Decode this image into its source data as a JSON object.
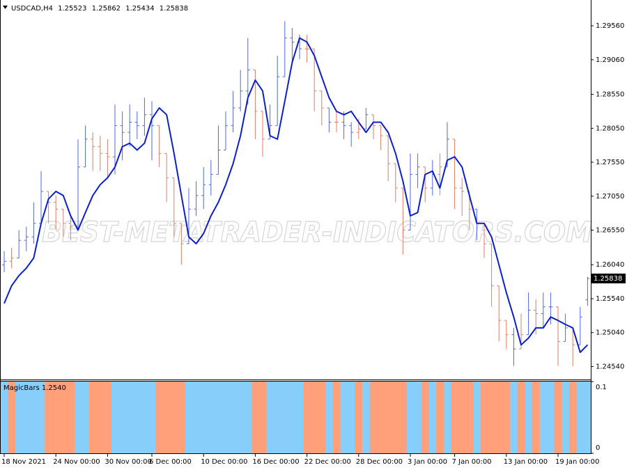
{
  "chart_data": [
    {
      "type": "ohlc",
      "title": "USDCAD,H4",
      "watermark": "BEST-METATRADER-INDICATORS.COM",
      "categories": [
        "18 Nov 2021",
        null,
        null,
        null,
        null,
        null,
        null,
        "24 Nov 00:00",
        null,
        null,
        null,
        null,
        null,
        null,
        "30 Nov 00:00",
        null,
        null,
        null,
        null,
        null,
        "6 Dec 00:00",
        null,
        null,
        null,
        null,
        null,
        null,
        "10 Dec 00:00",
        null,
        null,
        null,
        null,
        null,
        null,
        "16 Dec 00:00",
        null,
        null,
        null,
        null,
        null,
        null,
        "22 Dec 00:00",
        null,
        null,
        null,
        null,
        null,
        null,
        "28 Dec 00:00",
        null,
        null,
        null,
        null,
        null,
        null,
        "3 Jan 00:00",
        null,
        null,
        null,
        null,
        null,
        "7 Jan 00:00",
        null,
        null,
        null,
        null,
        null,
        null,
        "13 Jan 00:00",
        null,
        null,
        null,
        null,
        null,
        null,
        "19 Jan 00:00",
        null,
        null,
        null,
        null
      ],
      "open": [
        1.2604,
        1.2609,
        1.2614,
        1.264,
        1.2645,
        1.2665,
        1.2712,
        1.2696,
        1.2686,
        1.2665,
        1.266,
        1.2748,
        1.2789,
        1.2778,
        1.2768,
        1.2763,
        1.2809,
        1.2799,
        1.2814,
        1.2809,
        1.2825,
        1.2809,
        1.2768,
        1.2732,
        1.2665,
        1.2635,
        1.2686,
        1.2706,
        1.2722,
        1.2737,
        1.2773,
        1.2809,
        1.2835,
        1.286,
        1.2891,
        1.283,
        1.2789,
        1.2809,
        1.2881,
        1.2938,
        1.2932,
        1.2922,
        1.2922,
        1.286,
        1.2835,
        1.2814,
        1.2814,
        1.2809,
        1.2799,
        1.2804,
        1.2825,
        1.2809,
        1.2794,
        1.2753,
        1.2717,
        1.2655,
        1.2737,
        1.2748,
        1.2717,
        1.2737,
        1.2748,
        1.2789,
        1.2717,
        1.2712,
        1.2686,
        1.2665,
        1.2635,
        1.2573,
        1.2522,
        1.2501,
        1.248,
        1.2501,
        1.2537,
        1.2532,
        1.2542,
        1.2542,
        1.2491,
        1.2511,
        1.2486,
        1.25523
      ],
      "high": [
        1.2624,
        1.2629,
        1.2655,
        1.266,
        1.2696,
        1.2742,
        1.2712,
        1.2706,
        1.2686,
        1.2676,
        1.2789,
        1.2809,
        1.2799,
        1.2794,
        1.2789,
        1.284,
        1.283,
        1.284,
        1.283,
        1.285,
        1.2845,
        1.2809,
        1.2768,
        1.2732,
        1.2665,
        1.2717,
        1.2727,
        1.2748,
        1.2758,
        1.2809,
        1.283,
        1.286,
        1.2891,
        1.2938,
        1.2891,
        1.283,
        1.284,
        1.2912,
        1.2963,
        1.2953,
        1.2943,
        1.2943,
        1.2922,
        1.286,
        1.2835,
        1.283,
        1.283,
        1.2814,
        1.2819,
        1.2835,
        1.2825,
        1.2809,
        1.2794,
        1.2753,
        1.2717,
        1.2768,
        1.2768,
        1.2748,
        1.2758,
        1.2768,
        1.2814,
        1.2789,
        1.2732,
        1.2712,
        1.2686,
        1.2665,
        1.2635,
        1.2573,
        1.2522,
        1.2511,
        1.2532,
        1.2563,
        1.2553,
        1.2563,
        1.2563,
        1.2542,
        1.2532,
        1.2511,
        1.2542,
        1.25862
      ],
      "low": [
        1.2593,
        1.2599,
        1.2614,
        1.2624,
        1.2635,
        1.2665,
        1.2665,
        1.2655,
        1.2645,
        1.264,
        1.2655,
        1.2748,
        1.2742,
        1.2742,
        1.2732,
        1.2737,
        1.2758,
        1.2778,
        1.2789,
        1.2794,
        1.2758,
        1.2748,
        1.2696,
        1.2645,
        1.2604,
        1.2635,
        1.2676,
        1.2686,
        1.2706,
        1.2737,
        1.2773,
        1.2799,
        1.283,
        1.284,
        1.2789,
        1.2763,
        1.2789,
        1.2809,
        1.2881,
        1.2902,
        1.2907,
        1.2902,
        1.283,
        1.2809,
        1.2799,
        1.2799,
        1.2789,
        1.2778,
        1.2789,
        1.2804,
        1.2789,
        1.2773,
        1.2727,
        1.2696,
        1.2619,
        1.2655,
        1.2717,
        1.2696,
        1.2706,
        1.2706,
        1.2748,
        1.2686,
        1.2676,
        1.2655,
        1.264,
        1.2614,
        1.2542,
        1.2491,
        1.248,
        1.2455,
        1.248,
        1.2501,
        1.2501,
        1.2511,
        1.2516,
        1.2455,
        1.2491,
        1.2455,
        1.2486,
        1.25434
      ],
      "close": [
        1.2609,
        1.2614,
        1.264,
        1.2645,
        1.2665,
        1.2712,
        1.2696,
        1.2686,
        1.2665,
        1.266,
        1.2748,
        1.2789,
        1.2778,
        1.2768,
        1.2763,
        1.2809,
        1.2799,
        1.2814,
        1.2809,
        1.2825,
        1.2809,
        1.2768,
        1.2732,
        1.2665,
        1.2635,
        1.2686,
        1.2706,
        1.2722,
        1.2737,
        1.2773,
        1.2809,
        1.2835,
        1.286,
        1.2891,
        1.283,
        1.2789,
        1.2809,
        1.2881,
        1.2938,
        1.2932,
        1.2922,
        1.2922,
        1.286,
        1.2835,
        1.2814,
        1.2814,
        1.2809,
        1.2799,
        1.2804,
        1.2825,
        1.2809,
        1.2794,
        1.2753,
        1.2717,
        1.2655,
        1.2737,
        1.2748,
        1.2717,
        1.2737,
        1.2748,
        1.2789,
        1.2717,
        1.2712,
        1.2686,
        1.2665,
        1.2635,
        1.2573,
        1.2522,
        1.2501,
        1.248,
        1.2501,
        1.2537,
        1.2532,
        1.2542,
        1.2542,
        1.2491,
        1.2511,
        1.2486,
        1.2527,
        1.25838
      ],
      "bar_colors": [
        "#5067dc",
        "#e27d62"
      ],
      "series": [
        {
          "color": "#0a1fcc",
          "values": [
            1.2547,
            1.2573,
            1.2588,
            1.2599,
            1.2614,
            1.2665,
            1.2701,
            1.2712,
            1.2706,
            1.2676,
            1.2655,
            1.2681,
            1.2706,
            1.2722,
            1.2732,
            1.2748,
            1.2778,
            1.2783,
            1.2773,
            1.2783,
            1.2819,
            1.2835,
            1.2825,
            1.2768,
            1.2706,
            1.2645,
            1.2635,
            1.265,
            1.2676,
            1.2696,
            1.2722,
            1.2753,
            1.2794,
            1.285,
            1.2876,
            1.286,
            1.2794,
            1.2789,
            1.2845,
            1.2902,
            1.2938,
            1.2932,
            1.2912,
            1.2881,
            1.285,
            1.283,
            1.2825,
            1.283,
            1.2814,
            1.2799,
            1.2814,
            1.2814,
            1.2799,
            1.2768,
            1.2727,
            1.2676,
            1.2681,
            1.2737,
            1.2742,
            1.2717,
            1.2758,
            1.2763,
            1.2748,
            1.2706,
            1.2665,
            1.2665,
            1.2645,
            1.2604,
            1.2563,
            1.2527,
            1.2486,
            1.2496,
            1.2511,
            1.2511,
            1.2527,
            1.2522,
            1.2516,
            1.2511,
            1.2475,
            1.2486
          ]
        }
      ],
      "ylim": [
        1.2435,
        1.2994
      ],
      "yticks": [
        {
          "value": 1.2956,
          "label": "1.29560"
        },
        {
          "value": 1.2906,
          "label": "1.29060"
        },
        {
          "value": 1.2855,
          "label": "1.28550"
        },
        {
          "value": 1.2805,
          "label": "1.28050"
        },
        {
          "value": 1.2755,
          "label": "1.27550"
        },
        {
          "value": 1.2705,
          "label": "1.27050"
        },
        {
          "value": 1.2655,
          "label": "1.26550"
        },
        {
          "value": 1.2604,
          "label": "1.26040"
        },
        {
          "value": 1.2554,
          "label": "1.25540"
        },
        {
          "value": 1.2504,
          "label": "1.25040"
        },
        {
          "value": 1.2454,
          "label": "1.24540"
        }
      ]
    },
    {
      "type": "bar",
      "title": "MagicBars 1.2540",
      "series": [
        {
          "color": "#87cefa",
          "values": [
            0.1,
            null,
            0.1,
            0.1,
            0.1,
            0.1,
            null,
            null,
            null,
            null,
            0.1,
            0.1,
            null,
            null,
            null,
            0.1,
            0.1,
            0.1,
            0.1,
            0.1,
            0.1,
            null,
            null,
            null,
            null,
            0.1,
            0.1,
            0.1,
            0.1,
            0.1,
            0.1,
            0.1,
            0.1,
            0.1,
            null,
            null,
            0.1,
            0.1,
            0.1,
            0.1,
            0.1,
            null,
            null,
            null,
            0.1,
            null,
            0.1,
            0.1,
            null,
            0.1,
            null,
            null,
            null,
            null,
            null,
            0.1,
            0.1,
            null,
            0.1,
            null,
            0.1,
            null,
            null,
            null,
            0.1,
            null,
            null,
            null,
            null,
            0.1,
            null,
            0.1,
            null,
            0.1,
            0.1,
            null,
            0.1,
            null,
            0.1,
            0.1
          ]
        },
        {
          "color": "#ffa07a",
          "values": [
            null,
            0.1,
            null,
            null,
            null,
            null,
            0.1,
            0.1,
            0.1,
            0.1,
            null,
            null,
            0.1,
            0.1,
            0.1,
            null,
            null,
            null,
            null,
            null,
            null,
            0.1,
            0.1,
            0.1,
            0.1,
            null,
            null,
            null,
            null,
            null,
            null,
            null,
            null,
            null,
            0.1,
            0.1,
            null,
            null,
            null,
            null,
            null,
            0.1,
            0.1,
            0.1,
            null,
            0.1,
            null,
            null,
            0.1,
            null,
            0.1,
            0.1,
            0.1,
            0.1,
            0.1,
            null,
            null,
            0.1,
            null,
            0.1,
            null,
            0.1,
            0.1,
            0.1,
            null,
            0.1,
            0.1,
            0.1,
            0.1,
            null,
            0.1,
            null,
            0.1,
            null,
            null,
            0.1,
            null,
            0.1,
            null,
            null
          ]
        }
      ],
      "ylim": [
        0,
        0.1
      ],
      "yticks": [
        0.1,
        0
      ]
    }
  ]
}
